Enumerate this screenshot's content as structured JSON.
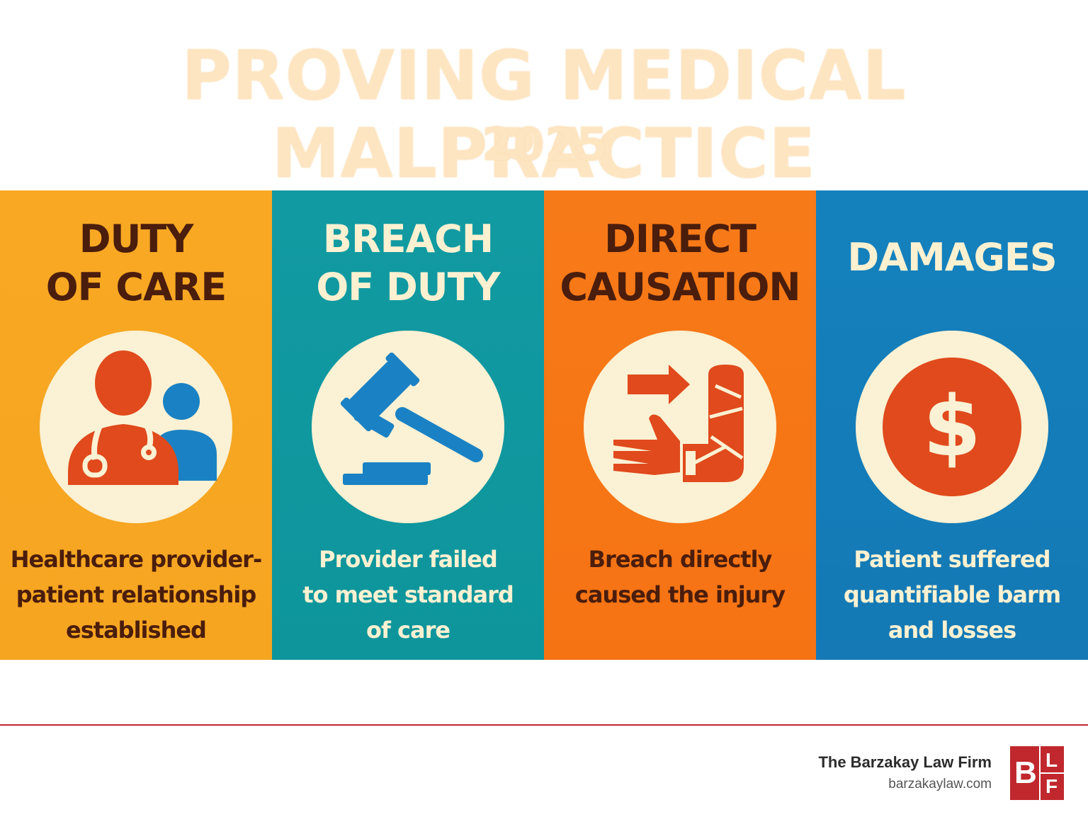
{
  "header": {
    "title": "PROVING MEDICAL MALPRACTICE",
    "year": "2025"
  },
  "panels": [
    {
      "heading": [
        "DUTY",
        "OF CARE"
      ],
      "icon": "doctor-patient-icon",
      "description": [
        "Healthcare provider-",
        "patient relationship",
        "established"
      ],
      "color": "#f8a823"
    },
    {
      "heading": [
        "BREACH",
        "OF DUTY"
      ],
      "icon": "gavel-icon",
      "description": [
        "Provider failed",
        "to meet standard",
        "of care"
      ],
      "color": "#129aa2"
    },
    {
      "heading": [
        "DIRECT",
        "CAUSATION"
      ],
      "icon": "injured-arm-icon",
      "description": [
        "Breach directly",
        "caused the injury"
      ],
      "color": "#f77a18"
    },
    {
      "heading": [
        "DAMAGES"
      ],
      "icon": "dollar-coin-icon",
      "description": [
        "Patient suffered",
        "quantifiable barm",
        "and losses"
      ],
      "color": "#1481bd"
    }
  ],
  "footer": {
    "firm_name": "The Barzakay Law Firm",
    "url": "barzakaylaw.com",
    "logo": {
      "big": "B",
      "top": "L",
      "bottom": "F"
    },
    "accent": "#c0282d"
  }
}
